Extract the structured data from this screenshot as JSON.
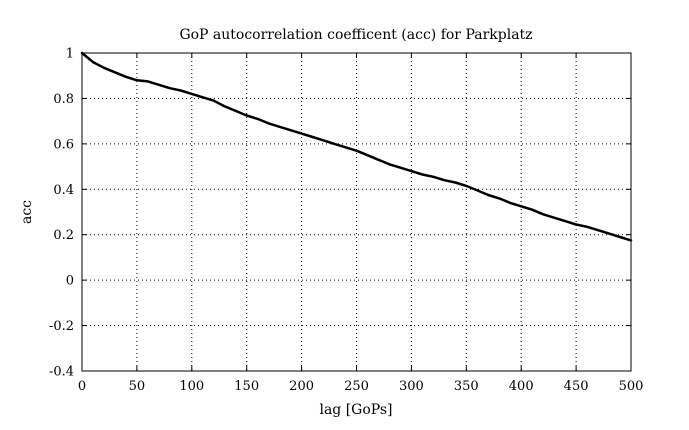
{
  "chart_data": {
    "type": "line",
    "title": "GoP autocorrelation coefficent (acc) for Parkplatz",
    "xlabel": "lag [GoPs]",
    "ylabel": "acc",
    "xlim": [
      0,
      500
    ],
    "ylim": [
      -0.4,
      1
    ],
    "xticks": [
      0,
      50,
      100,
      150,
      200,
      250,
      300,
      350,
      400,
      450,
      500
    ],
    "yticks": [
      -0.4,
      -0.2,
      0,
      0.2,
      0.4,
      0.6,
      0.8,
      1
    ],
    "xtick_labels": [
      "0",
      "50",
      "100",
      "150",
      "200",
      "250",
      "300",
      "350",
      "400",
      "450",
      "500"
    ],
    "ytick_labels": [
      "-0.4",
      "-0.2",
      "0",
      "0.2",
      "0.4",
      "0.6",
      "0.8",
      "1"
    ],
    "grid": true,
    "grid_style": "dotted",
    "line_color": "#000000",
    "series": [
      {
        "x": [
          0,
          5,
          10,
          20,
          30,
          40,
          50,
          60,
          70,
          80,
          90,
          100,
          110,
          120,
          130,
          140,
          150,
          160,
          170,
          180,
          190,
          200,
          210,
          220,
          230,
          240,
          250,
          260,
          270,
          280,
          290,
          300,
          310,
          320,
          330,
          340,
          350,
          360,
          370,
          380,
          390,
          400,
          410,
          420,
          430,
          440,
          450,
          460,
          470,
          480,
          490,
          500
        ],
        "y": [
          1.0,
          0.98,
          0.96,
          0.935,
          0.915,
          0.895,
          0.88,
          0.875,
          0.86,
          0.845,
          0.835,
          0.82,
          0.805,
          0.79,
          0.765,
          0.745,
          0.725,
          0.71,
          0.69,
          0.675,
          0.66,
          0.645,
          0.63,
          0.615,
          0.6,
          0.585,
          0.57,
          0.55,
          0.53,
          0.51,
          0.495,
          0.48,
          0.465,
          0.455,
          0.44,
          0.43,
          0.415,
          0.395,
          0.375,
          0.36,
          0.34,
          0.325,
          0.31,
          0.29,
          0.275,
          0.26,
          0.245,
          0.235,
          0.22,
          0.205,
          0.19,
          0.175
        ]
      }
    ]
  }
}
